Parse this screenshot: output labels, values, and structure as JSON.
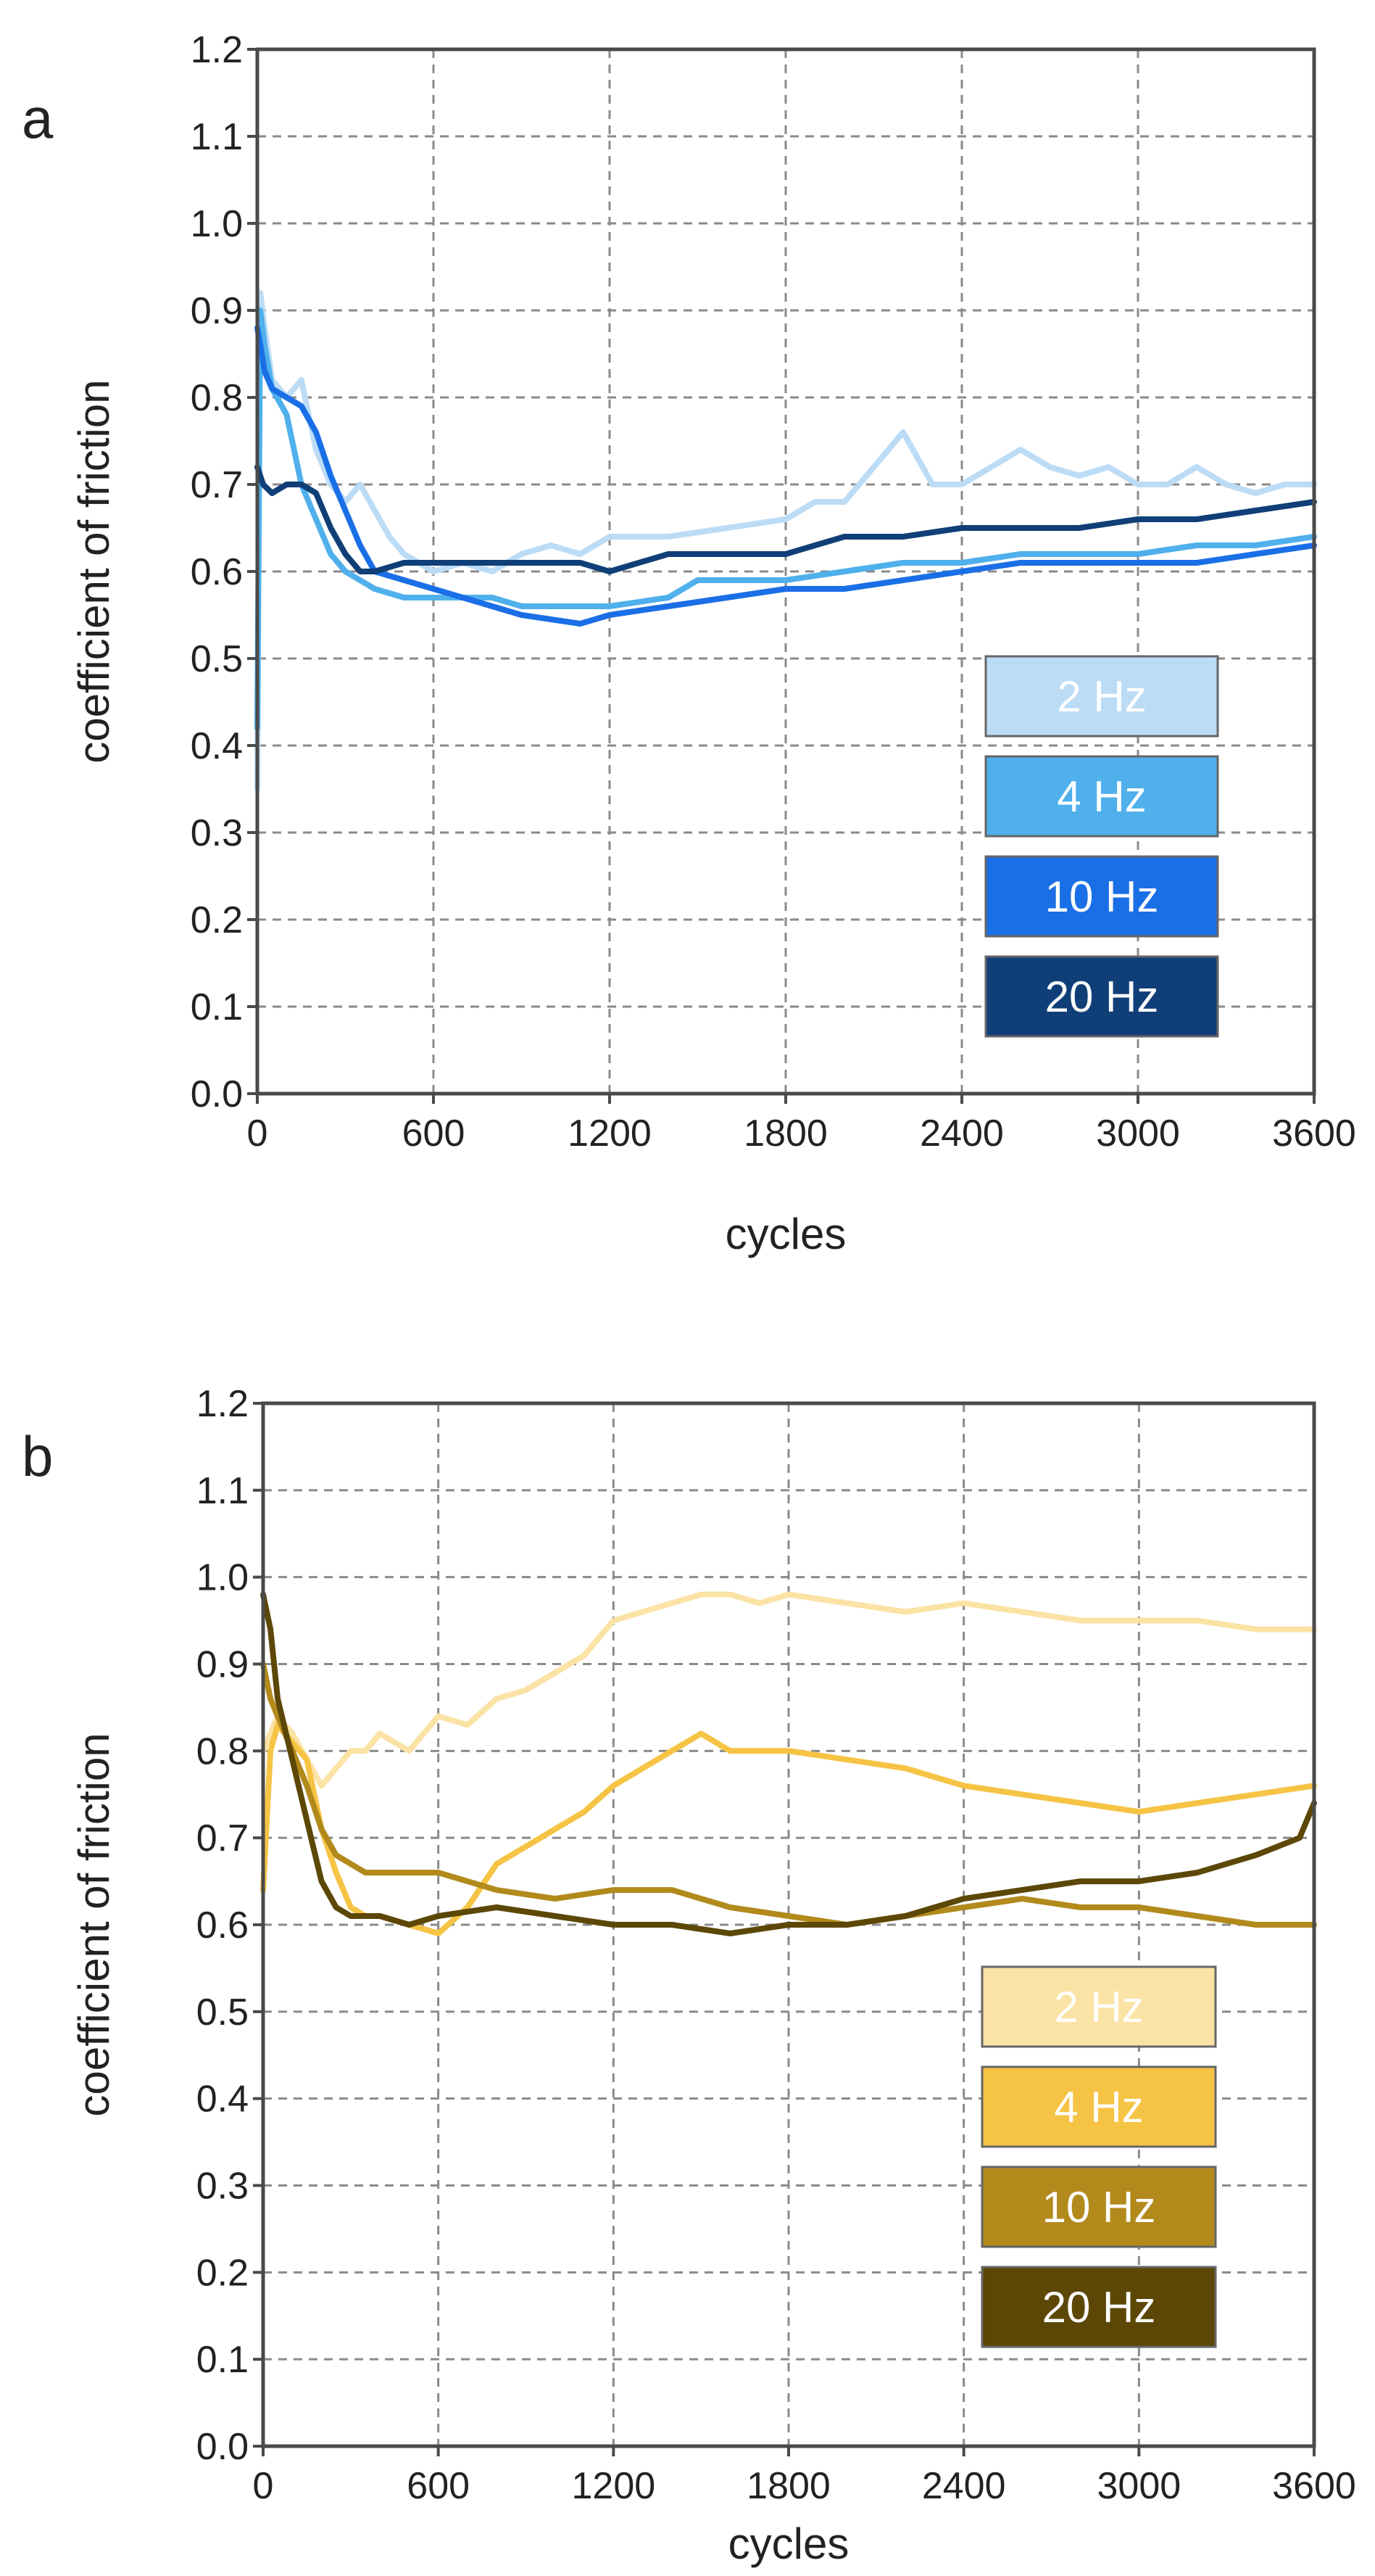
{
  "chart_data": [
    {
      "type": "line",
      "panel_label": "a",
      "xlabel": "cycles",
      "ylabel": "coefficient of friction",
      "xlim": [
        0,
        3600
      ],
      "ylim": [
        0.0,
        1.2
      ],
      "x_ticks": [
        "0",
        "600",
        "1200",
        "1800",
        "2400",
        "3000",
        "3600"
      ],
      "y_ticks": [
        "0.0",
        "0.1",
        "0.2",
        "0.3",
        "0.4",
        "0.5",
        "0.6",
        "0.7",
        "0.8",
        "0.9",
        "1.0",
        "1.1",
        "1.2"
      ],
      "grid": true,
      "legend_position": "bottom-right",
      "series": [
        {
          "name": "2 Hz",
          "color": "#bcdcf6",
          "text_color": "#ffffff",
          "x": [
            0,
            10,
            25,
            50,
            100,
            150,
            200,
            250,
            300,
            350,
            400,
            450,
            500,
            550,
            600,
            700,
            800,
            900,
            1000,
            1100,
            1200,
            1400,
            1600,
            1800,
            1900,
            2000,
            2050,
            2100,
            2200,
            2300,
            2400,
            2500,
            2600,
            2700,
            2800,
            2900,
            3000,
            3100,
            3200,
            3300,
            3400,
            3500,
            3600
          ],
          "y": [
            0.35,
            0.92,
            0.88,
            0.82,
            0.8,
            0.82,
            0.74,
            0.7,
            0.68,
            0.7,
            0.67,
            0.64,
            0.62,
            0.61,
            0.6,
            0.61,
            0.6,
            0.62,
            0.63,
            0.62,
            0.64,
            0.64,
            0.65,
            0.66,
            0.68,
            0.68,
            0.7,
            0.72,
            0.76,
            0.7,
            0.7,
            0.72,
            0.74,
            0.72,
            0.71,
            0.72,
            0.7,
            0.7,
            0.72,
            0.7,
            0.69,
            0.7,
            0.7
          ]
        },
        {
          "name": "4 Hz",
          "color": "#4fb0ec",
          "text_color": "#ffffff",
          "x": [
            0,
            10,
            25,
            50,
            100,
            150,
            200,
            250,
            300,
            400,
            500,
            600,
            700,
            800,
            900,
            1000,
            1200,
            1400,
            1450,
            1500,
            1600,
            1800,
            2000,
            2200,
            2400,
            2600,
            2800,
            3000,
            3200,
            3400,
            3600
          ],
          "y": [
            0.42,
            0.9,
            0.86,
            0.81,
            0.78,
            0.7,
            0.66,
            0.62,
            0.6,
            0.58,
            0.57,
            0.57,
            0.57,
            0.57,
            0.56,
            0.56,
            0.56,
            0.57,
            0.58,
            0.59,
            0.59,
            0.59,
            0.6,
            0.61,
            0.61,
            0.62,
            0.62,
            0.62,
            0.63,
            0.63,
            0.64
          ]
        },
        {
          "name": "10 Hz",
          "color": "#1a6fe6",
          "text_color": "#ffffff",
          "x": [
            0,
            10,
            25,
            50,
            100,
            150,
            200,
            250,
            300,
            350,
            400,
            500,
            600,
            700,
            800,
            900,
            1000,
            1100,
            1200,
            1400,
            1600,
            1800,
            2000,
            2200,
            2400,
            2600,
            2800,
            3000,
            3200,
            3400,
            3600
          ],
          "y": [
            0.88,
            0.86,
            0.83,
            0.81,
            0.8,
            0.79,
            0.76,
            0.71,
            0.67,
            0.63,
            0.6,
            0.59,
            0.58,
            0.57,
            0.56,
            0.55,
            0.545,
            0.54,
            0.55,
            0.56,
            0.57,
            0.58,
            0.58,
            0.59,
            0.6,
            0.61,
            0.61,
            0.61,
            0.61,
            0.62,
            0.63
          ]
        },
        {
          "name": "20 Hz",
          "color": "#103f78",
          "text_color": "#ffffff",
          "x": [
            0,
            20,
            50,
            100,
            150,
            200,
            250,
            300,
            350,
            400,
            500,
            600,
            700,
            800,
            900,
            1000,
            1100,
            1200,
            1400,
            1600,
            1800,
            2000,
            2200,
            2400,
            2600,
            2800,
            3000,
            3200,
            3400,
            3600
          ],
          "y": [
            0.72,
            0.7,
            0.69,
            0.7,
            0.7,
            0.69,
            0.65,
            0.62,
            0.6,
            0.6,
            0.61,
            0.61,
            0.61,
            0.61,
            0.61,
            0.61,
            0.61,
            0.6,
            0.62,
            0.62,
            0.62,
            0.64,
            0.64,
            0.65,
            0.65,
            0.65,
            0.66,
            0.66,
            0.67,
            0.68
          ]
        }
      ]
    },
    {
      "type": "line",
      "panel_label": "b",
      "xlabel": "cycles",
      "ylabel": "coefficient of friction",
      "xlim": [
        0,
        3600
      ],
      "ylim": [
        0.0,
        1.2
      ],
      "x_ticks": [
        "0",
        "600",
        "1200",
        "1800",
        "2400",
        "3000",
        "3600"
      ],
      "y_ticks": [
        "0.0",
        "0.1",
        "0.2",
        "0.3",
        "0.4",
        "0.5",
        "0.6",
        "0.7",
        "0.8",
        "0.9",
        "1.0",
        "1.1",
        "1.2"
      ],
      "grid": true,
      "legend_position": "bottom-right",
      "series": [
        {
          "name": "2 Hz",
          "color": "#fbe3a6",
          "text_color": "#ffffff",
          "x": [
            0,
            25,
            50,
            100,
            150,
            200,
            250,
            300,
            350,
            400,
            500,
            600,
            700,
            800,
            900,
            1000,
            1100,
            1200,
            1300,
            1400,
            1500,
            1600,
            1700,
            1800,
            2000,
            2200,
            2400,
            2600,
            2800,
            3000,
            3200,
            3400,
            3600
          ],
          "y": [
            0.8,
            0.82,
            0.84,
            0.82,
            0.79,
            0.76,
            0.78,
            0.8,
            0.8,
            0.82,
            0.8,
            0.84,
            0.83,
            0.86,
            0.87,
            0.89,
            0.91,
            0.95,
            0.96,
            0.97,
            0.98,
            0.98,
            0.97,
            0.98,
            0.97,
            0.96,
            0.97,
            0.96,
            0.95,
            0.95,
            0.95,
            0.94,
            0.94
          ]
        },
        {
          "name": "4 Hz",
          "color": "#f6c445",
          "text_color": "#ffffff",
          "x": [
            0,
            25,
            50,
            100,
            150,
            200,
            250,
            300,
            350,
            400,
            500,
            600,
            700,
            800,
            900,
            1000,
            1100,
            1200,
            1300,
            1400,
            1500,
            1600,
            1800,
            2000,
            2200,
            2400,
            2600,
            2800,
            3000,
            3200,
            3400,
            3600
          ],
          "y": [
            0.64,
            0.8,
            0.83,
            0.81,
            0.79,
            0.71,
            0.66,
            0.62,
            0.61,
            0.61,
            0.6,
            0.59,
            0.62,
            0.67,
            0.69,
            0.71,
            0.73,
            0.76,
            0.78,
            0.8,
            0.82,
            0.8,
            0.8,
            0.79,
            0.78,
            0.76,
            0.75,
            0.74,
            0.73,
            0.74,
            0.75,
            0.76
          ]
        },
        {
          "name": "10 Hz",
          "color": "#b28a1c",
          "text_color": "#ffffff",
          "x": [
            0,
            25,
            50,
            100,
            150,
            200,
            250,
            300,
            350,
            400,
            500,
            600,
            800,
            1000,
            1200,
            1400,
            1600,
            1800,
            2000,
            2200,
            2400,
            2600,
            2800,
            3000,
            3200,
            3400,
            3600
          ],
          "y": [
            0.9,
            0.86,
            0.84,
            0.8,
            0.76,
            0.71,
            0.68,
            0.67,
            0.66,
            0.66,
            0.66,
            0.66,
            0.64,
            0.63,
            0.64,
            0.64,
            0.62,
            0.61,
            0.6,
            0.61,
            0.62,
            0.63,
            0.62,
            0.62,
            0.61,
            0.6,
            0.6
          ]
        },
        {
          "name": "20 Hz",
          "color": "#5c4707",
          "text_color": "#ffffff",
          "x": [
            0,
            25,
            50,
            100,
            150,
            200,
            250,
            300,
            350,
            400,
            500,
            600,
            800,
            1000,
            1200,
            1400,
            1600,
            1800,
            2000,
            2200,
            2400,
            2600,
            2800,
            3000,
            3200,
            3400,
            3550,
            3600
          ],
          "y": [
            0.98,
            0.94,
            0.86,
            0.79,
            0.72,
            0.65,
            0.62,
            0.61,
            0.61,
            0.61,
            0.6,
            0.61,
            0.62,
            0.61,
            0.6,
            0.6,
            0.59,
            0.6,
            0.6,
            0.61,
            0.63,
            0.64,
            0.65,
            0.65,
            0.66,
            0.68,
            0.7,
            0.74
          ]
        }
      ]
    }
  ]
}
